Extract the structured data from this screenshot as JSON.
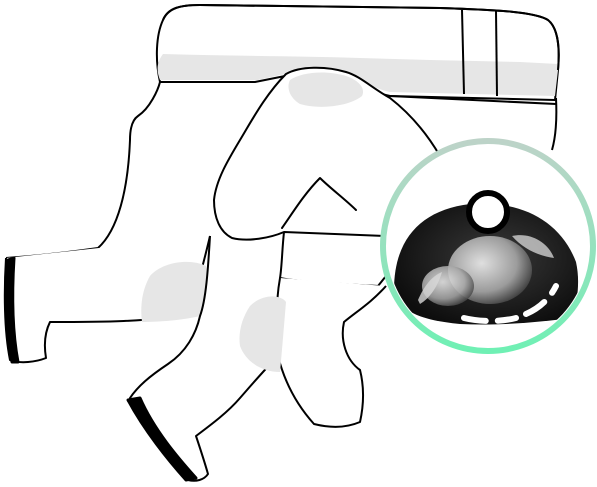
{
  "illustration": {
    "subject": "line-drawing-figure-with-circular-badge",
    "colors": {
      "stroke": "#000000",
      "shade": "#e6e6e6",
      "badge_ring_top": "#bdd3c8",
      "badge_ring_bottom": "#6ff0b4",
      "badge_fill": "#ffffff",
      "photo_dark": "#151515"
    },
    "badge": {
      "content": "monochrome-photo-of-person-lying-down",
      "marker_icon": "hollow-circle-pin-icon",
      "accent": "dashed-white-arc"
    }
  }
}
